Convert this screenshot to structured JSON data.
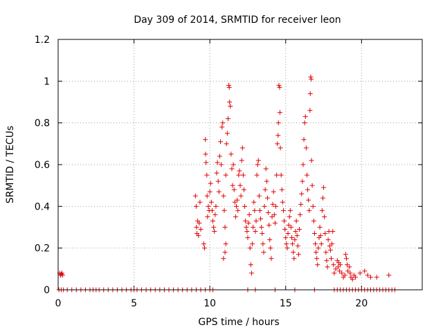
{
  "chart_data": {
    "type": "scatter",
    "title": "Day 309 of 2014, SRMTID for receiver leon",
    "xlabel": "GPS time / hours",
    "ylabel": "SRMTID / TECUs",
    "xlim": [
      0,
      24
    ],
    "ylim": [
      0,
      1.2
    ],
    "xticks": [
      0,
      5,
      10,
      15,
      20
    ],
    "yticks": [
      0,
      0.2,
      0.4,
      0.6,
      0.8,
      1,
      1.2
    ],
    "ytick_labels": [
      "0",
      "0.2",
      "0.4",
      "0.6",
      "0.8",
      "1",
      "1.2"
    ],
    "grid": true,
    "marker": "plus",
    "color": "#e00000",
    "series": [
      {
        "name": "SRMTID",
        "points": [
          [
            0.1,
            0.08
          ],
          [
            0.15,
            0.07
          ],
          [
            0.2,
            0.075
          ],
          [
            0.25,
            0.08
          ],
          [
            0.3,
            0.07
          ],
          [
            9.05,
            0.45
          ],
          [
            9.1,
            0.4
          ],
          [
            9.12,
            0.3
          ],
          [
            9.15,
            0.27
          ],
          [
            9.2,
            0.33
          ],
          [
            9.25,
            0.26
          ],
          [
            9.3,
            0.32
          ],
          [
            9.35,
            0.42
          ],
          [
            9.4,
            0.29
          ],
          [
            9.6,
            0.22
          ],
          [
            9.65,
            0.2
          ],
          [
            9.7,
            0.72
          ],
          [
            9.72,
            0.65
          ],
          [
            9.75,
            0.61
          ],
          [
            9.8,
            0.55
          ],
          [
            9.82,
            0.45
          ],
          [
            9.85,
            0.35
          ],
          [
            9.9,
            0.4
          ],
          [
            9.95,
            0.38
          ],
          [
            10.0,
            0.47
          ],
          [
            10.05,
            0.51
          ],
          [
            10.1,
            0.42
          ],
          [
            10.15,
            0.38
          ],
          [
            10.2,
            0.33
          ],
          [
            10.25,
            0.3
          ],
          [
            10.3,
            0.28
          ],
          [
            10.35,
            0.36
          ],
          [
            10.4,
            0.4
          ],
          [
            10.45,
            0.56
          ],
          [
            10.5,
            0.61
          ],
          [
            10.55,
            0.52
          ],
          [
            10.6,
            0.47
          ],
          [
            10.65,
            0.64
          ],
          [
            10.7,
            0.71
          ],
          [
            10.75,
            0.6
          ],
          [
            10.8,
            0.78
          ],
          [
            10.85,
            0.8
          ],
          [
            10.9,
            0.45
          ],
          [
            10.95,
            0.38
          ],
          [
            11.0,
            0.3
          ],
          [
            11.05,
            0.22
          ],
          [
            10.9,
            0.15
          ],
          [
            11.0,
            0.18
          ],
          [
            11.05,
            0.55
          ],
          [
            11.1,
            0.7
          ],
          [
            11.15,
            0.75
          ],
          [
            11.2,
            0.82
          ],
          [
            11.25,
            0.98
          ],
          [
            11.28,
            0.97
          ],
          [
            11.3,
            0.9
          ],
          [
            11.35,
            0.88
          ],
          [
            11.4,
            0.65
          ],
          [
            11.45,
            0.58
          ],
          [
            11.5,
            0.5
          ],
          [
            11.55,
            0.6
          ],
          [
            11.6,
            0.48
          ],
          [
            11.65,
            0.42
          ],
          [
            11.7,
            0.35
          ],
          [
            11.75,
            0.4
          ],
          [
            11.8,
            0.43
          ],
          [
            11.85,
            0.38
          ],
          [
            11.9,
            0.55
          ],
          [
            11.95,
            0.57
          ],
          [
            12.0,
            0.5
          ],
          [
            12.05,
            0.45
          ],
          [
            12.1,
            0.62
          ],
          [
            12.15,
            0.68
          ],
          [
            12.2,
            0.55
          ],
          [
            12.25,
            0.48
          ],
          [
            12.3,
            0.4
          ],
          [
            12.35,
            0.33
          ],
          [
            12.4,
            0.3
          ],
          [
            12.45,
            0.28
          ],
          [
            12.5,
            0.25
          ],
          [
            12.55,
            0.32
          ],
          [
            12.6,
            0.36
          ],
          [
            12.65,
            0.2
          ],
          [
            12.7,
            0.12
          ],
          [
            12.75,
            0.08
          ],
          [
            12.8,
            0.22
          ],
          [
            12.85,
            0.3
          ],
          [
            12.9,
            0.42
          ],
          [
            12.95,
            0.38
          ],
          [
            13.0,
            0.28
          ],
          [
            13.05,
            0.33
          ],
          [
            13.1,
            0.55
          ],
          [
            13.15,
            0.6
          ],
          [
            13.2,
            0.62
          ],
          [
            13.25,
            0.45
          ],
          [
            13.3,
            0.38
          ],
          [
            13.35,
            0.34
          ],
          [
            13.4,
            0.3
          ],
          [
            13.45,
            0.27
          ],
          [
            13.5,
            0.22
          ],
          [
            13.55,
            0.18
          ],
          [
            13.6,
            0.4
          ],
          [
            13.65,
            0.48
          ],
          [
            13.7,
            0.58
          ],
          [
            13.75,
            0.52
          ],
          [
            13.8,
            0.44
          ],
          [
            13.85,
            0.37
          ],
          [
            13.9,
            0.31
          ],
          [
            13.95,
            0.24
          ],
          [
            14.0,
            0.2
          ],
          [
            14.05,
            0.15
          ],
          [
            14.1,
            0.35
          ],
          [
            14.15,
            0.41
          ],
          [
            14.2,
            0.47
          ],
          [
            14.25,
            0.36
          ],
          [
            14.3,
            0.32
          ],
          [
            14.35,
            0.4
          ],
          [
            14.4,
            0.55
          ],
          [
            14.45,
            0.7
          ],
          [
            14.5,
            0.74
          ],
          [
            14.52,
            0.8
          ],
          [
            14.55,
            0.98
          ],
          [
            14.6,
            0.97
          ],
          [
            14.62,
            0.85
          ],
          [
            14.65,
            0.68
          ],
          [
            14.7,
            0.55
          ],
          [
            14.75,
            0.48
          ],
          [
            14.8,
            0.42
          ],
          [
            14.85,
            0.38
          ],
          [
            14.9,
            0.33
          ],
          [
            14.95,
            0.29
          ],
          [
            15.0,
            0.25
          ],
          [
            15.05,
            0.22
          ],
          [
            15.1,
            0.2
          ],
          [
            15.15,
            0.27
          ],
          [
            15.2,
            0.31
          ],
          [
            15.25,
            0.35
          ],
          [
            15.3,
            0.38
          ],
          [
            15.35,
            0.3
          ],
          [
            15.4,
            0.25
          ],
          [
            15.45,
            0.22
          ],
          [
            15.5,
            0.18
          ],
          [
            15.55,
            0.15
          ],
          [
            15.6,
            0.24
          ],
          [
            15.65,
            0.28
          ],
          [
            15.7,
            0.33
          ],
          [
            15.75,
            0.26
          ],
          [
            15.8,
            0.21
          ],
          [
            15.85,
            0.17
          ],
          [
            15.9,
            0.29
          ],
          [
            15.95,
            0.36
          ],
          [
            16.0,
            0.41
          ],
          [
            16.05,
            0.46
          ],
          [
            16.1,
            0.52
          ],
          [
            16.15,
            0.6
          ],
          [
            16.2,
            0.72
          ],
          [
            16.25,
            0.8
          ],
          [
            16.3,
            0.83
          ],
          [
            16.35,
            0.68
          ],
          [
            16.4,
            0.55
          ],
          [
            16.45,
            0.48
          ],
          [
            16.5,
            0.43
          ],
          [
            16.55,
            0.38
          ],
          [
            16.6,
            0.86
          ],
          [
            16.62,
            0.94
          ],
          [
            16.65,
            1.02
          ],
          [
            16.68,
            1.01
          ],
          [
            16.7,
            0.62
          ],
          [
            16.75,
            0.5
          ],
          [
            16.8,
            0.4
          ],
          [
            16.85,
            0.33
          ],
          [
            16.9,
            0.27
          ],
          [
            16.95,
            0.22
          ],
          [
            17.0,
            0.18
          ],
          [
            17.05,
            0.15
          ],
          [
            17.1,
            0.12
          ],
          [
            17.15,
            0.2
          ],
          [
            17.2,
            0.25
          ],
          [
            17.25,
            0.3
          ],
          [
            17.3,
            0.26
          ],
          [
            17.35,
            0.22
          ],
          [
            17.4,
            0.38
          ],
          [
            17.45,
            0.44
          ],
          [
            17.5,
            0.49
          ],
          [
            17.55,
            0.35
          ],
          [
            17.6,
            0.27
          ],
          [
            17.65,
            0.18
          ],
          [
            17.7,
            0.14
          ],
          [
            17.75,
            0.11
          ],
          [
            17.8,
            0.24
          ],
          [
            17.85,
            0.28
          ],
          [
            17.9,
            0.21
          ],
          [
            17.95,
            0.19
          ],
          [
            18.0,
            0.15
          ],
          [
            18.05,
            0.22
          ],
          [
            18.1,
            0.28
          ],
          [
            18.15,
            0.12
          ],
          [
            18.2,
            0.08
          ],
          [
            18.3,
            0.1
          ],
          [
            18.4,
            0.14
          ],
          [
            18.45,
            0.11
          ],
          [
            18.5,
            0.13
          ],
          [
            18.55,
            0.09
          ],
          [
            18.6,
            0.12
          ],
          [
            18.7,
            0.08
          ],
          [
            18.8,
            0.06
          ],
          [
            18.9,
            0.07
          ],
          [
            18.95,
            0.17
          ],
          [
            19.0,
            0.15
          ],
          [
            19.05,
            0.12
          ],
          [
            19.1,
            0.09
          ],
          [
            19.2,
            0.11
          ],
          [
            19.25,
            0.08
          ],
          [
            19.3,
            0.06
          ],
          [
            19.4,
            0.05
          ],
          [
            19.5,
            0.07
          ],
          [
            19.6,
            0.06
          ],
          [
            19.9,
            0.08
          ],
          [
            20.2,
            0.09
          ],
          [
            20.4,
            0.07
          ],
          [
            20.6,
            0.06
          ],
          [
            21.0,
            0.06
          ],
          [
            21.8,
            0.07
          ]
        ],
        "zero_points_x": [
          0.05,
          0.2,
          0.35,
          0.6,
          0.9,
          1.2,
          1.5,
          1.8,
          2.1,
          2.3,
          2.5,
          2.7,
          3.0,
          3.3,
          3.6,
          3.9,
          4.2,
          4.5,
          4.8,
          5.0,
          5.2,
          5.5,
          5.8,
          6.1,
          6.4,
          6.7,
          7.0,
          7.3,
          7.6,
          7.9,
          8.2,
          8.5,
          8.8,
          9.1,
          9.4,
          9.7,
          10.0,
          10.2,
          12.5,
          13.0,
          14.3,
          15.6,
          16.9,
          18.2,
          18.4,
          18.6,
          18.8,
          19.0,
          19.2,
          19.4,
          19.6,
          19.8,
          20.0,
          20.2,
          20.4,
          20.6,
          20.8,
          21.0,
          21.2,
          21.4,
          21.6,
          21.8,
          22.0,
          22.2
        ]
      }
    ]
  }
}
